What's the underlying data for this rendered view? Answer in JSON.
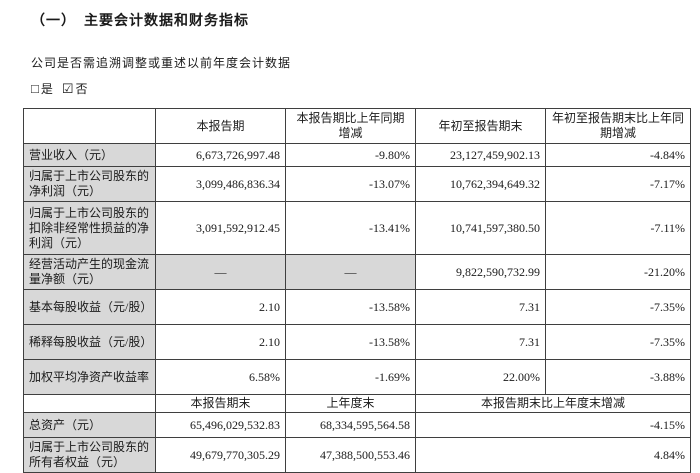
{
  "page": {
    "section_title": "（一）　主要会计数据和财务指标",
    "restatement_question": "公司是否需追溯调整或重述以前年度会计数据",
    "checkbox_yes_label": "是",
    "checkbox_no_label": "否"
  },
  "icons": {
    "checkbox_unchecked": "□",
    "checkbox_checked": "☑"
  },
  "colors": {
    "label_cell_bg": "#d8d8d8",
    "table_border": "#3f3f3f",
    "text": "#1a1a1a"
  },
  "table": {
    "header1": {
      "col1": "",
      "col2": "本报告期",
      "col3": "本报告期比上年同期增减",
      "col4": "年初至报告期末",
      "col5": "年初至报告期末比上年同期增减"
    },
    "rows1": [
      {
        "label": "营业收入（元）",
        "v": [
          "6,673,726,997.48",
          "-9.80%",
          "23,127,459,902.13",
          "-4.84%"
        ]
      },
      {
        "label": "归属于上市公司股东的净利润（元）",
        "v": [
          "3,099,486,836.34",
          "-13.07%",
          "10,762,394,649.32",
          "-7.17%"
        ]
      },
      {
        "label": "归属于上市公司股东的扣除非经常性损益的净利润（元）",
        "v": [
          "3,091,592,912.45",
          "-13.41%",
          "10,741,597,380.50",
          "-7.11%"
        ]
      },
      {
        "label": "经营活动产生的现金流量净额（元）",
        "v": [
          "—",
          "—",
          "9,822,590,732.99",
          "-21.20%"
        ]
      },
      {
        "label": "基本每股收益（元/股）",
        "v": [
          "2.10",
          "-13.58%",
          "7.31",
          "-7.35%"
        ]
      },
      {
        "label": "稀释每股收益（元/股）",
        "v": [
          "2.10",
          "-13.58%",
          "7.31",
          "-7.35%"
        ]
      },
      {
        "label": "加权平均净资产收益率",
        "v": [
          "6.58%",
          "-1.69%",
          "22.00%",
          "-3.88%"
        ]
      }
    ],
    "header2": {
      "col1": "",
      "col2": "本报告期末",
      "col3": "上年度末",
      "col45": "本报告期末比上年度末增减"
    },
    "rows2": [
      {
        "label": "总资产（元）",
        "v": [
          "65,496,029,532.83",
          "68,334,595,564.58",
          "-4.15%"
        ]
      },
      {
        "label": "归属于上市公司股东的所有者权益（元）",
        "v": [
          "49,679,770,305.29",
          "47,388,500,553.46",
          "4.84%"
        ]
      }
    ]
  }
}
